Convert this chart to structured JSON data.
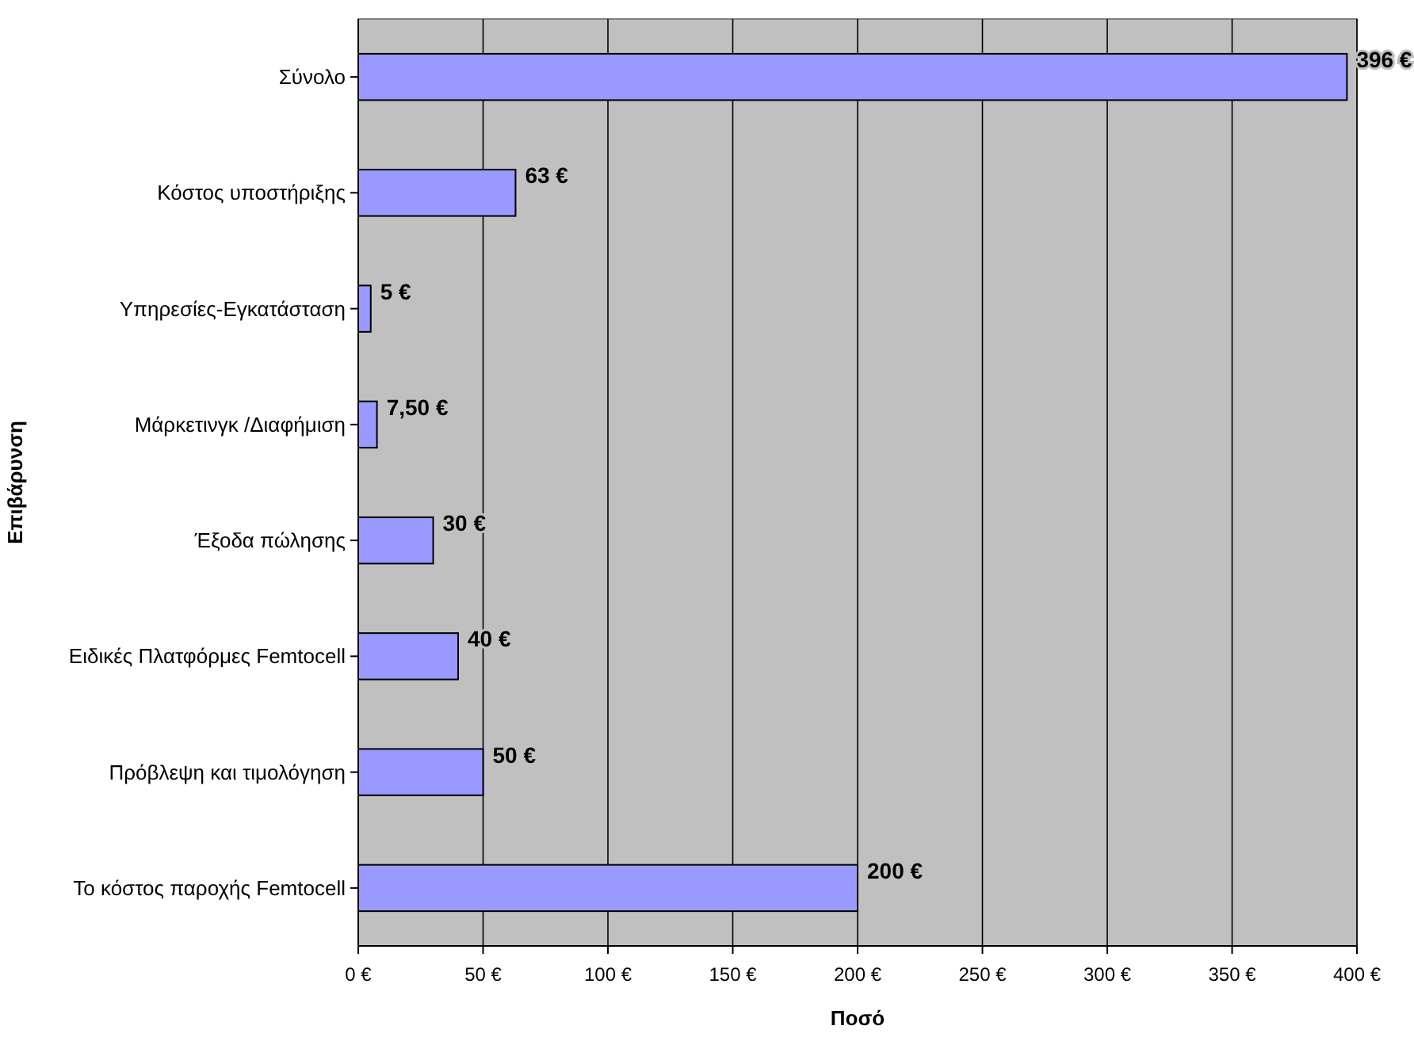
{
  "chart_data": {
    "type": "bar",
    "orientation": "horizontal",
    "xlabel": "Ποσό",
    "ylabel": "Επιβάρυνση",
    "categories": [
      "Σύνολο",
      "Κόστος υποστήριξης",
      "Υπηρεσίες-Εγκατάσταση",
      "Μάρκετινγκ /Διαφήμιση",
      "Έξοδα πώλησης",
      "Ειδικές Πλατφόρμες Femtocell",
      "Πρόβλεψη και τιμολόγηση",
      "Το κόστος παροχής Femtocell"
    ],
    "values": [
      396,
      63,
      5,
      7.5,
      30,
      40,
      50,
      200
    ],
    "value_labels": [
      "396 €",
      "63 €",
      "5 €",
      "7,50 €",
      "30 €",
      "40 €",
      "50 €",
      "200 €"
    ],
    "color": "#9999ff",
    "xlim": [
      0,
      400
    ],
    "xticks": [
      {
        "value": 0,
        "label": "0 €"
      },
      {
        "value": 50,
        "label": "50 €"
      },
      {
        "value": 100,
        "label": "100 €"
      },
      {
        "value": 150,
        "label": "150 €"
      },
      {
        "value": 200,
        "label": "200 €"
      },
      {
        "value": 250,
        "label": "250 €"
      },
      {
        "value": 300,
        "label": "300 €"
      },
      {
        "value": 350,
        "label": "350 €"
      },
      {
        "value": 400,
        "label": "400 €"
      }
    ],
    "grid": "x"
  }
}
